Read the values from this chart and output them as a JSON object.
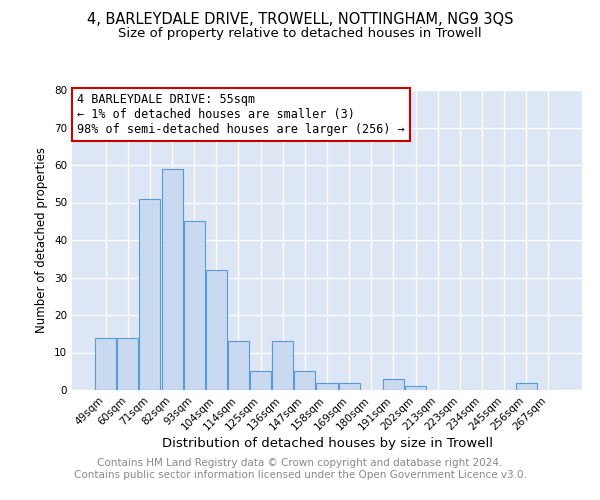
{
  "title": "4, BARLEYDALE DRIVE, TROWELL, NOTTINGHAM, NG9 3QS",
  "subtitle": "Size of property relative to detached houses in Trowell",
  "xlabel": "Distribution of detached houses by size in Trowell",
  "ylabel": "Number of detached properties",
  "bar_labels": [
    "49sqm",
    "60sqm",
    "71sqm",
    "82sqm",
    "93sqm",
    "104sqm",
    "114sqm",
    "125sqm",
    "136sqm",
    "147sqm",
    "158sqm",
    "169sqm",
    "180sqm",
    "191sqm",
    "202sqm",
    "213sqm",
    "223sqm",
    "234sqm",
    "245sqm",
    "256sqm",
    "267sqm"
  ],
  "bar_values": [
    14,
    14,
    51,
    59,
    45,
    32,
    13,
    5,
    13,
    5,
    2,
    2,
    0,
    3,
    1,
    0,
    0,
    0,
    0,
    2,
    0
  ],
  "bar_color": "#c9d9f0",
  "bar_edge_color": "#5b9bd5",
  "background_color": "#ffffff",
  "plot_bg_color": "#dce6f5",
  "grid_color": "#ffffff",
  "ylim": [
    0,
    80
  ],
  "yticks": [
    0,
    10,
    20,
    30,
    40,
    50,
    60,
    70,
    80
  ],
  "annotation_box_text": "4 BARLEYDALE DRIVE: 55sqm\n← 1% of detached houses are smaller (3)\n98% of semi-detached houses are larger (256) →",
  "annotation_box_color": "#ffffff",
  "annotation_box_edge_color": "#cc0000",
  "footer_line1": "Contains HM Land Registry data © Crown copyright and database right 2024.",
  "footer_line2": "Contains public sector information licensed under the Open Government Licence v3.0.",
  "title_fontsize": 10.5,
  "subtitle_fontsize": 9.5,
  "xlabel_fontsize": 9.5,
  "ylabel_fontsize": 8.5,
  "tick_fontsize": 7.5,
  "annotation_fontsize": 8.5,
  "footer_fontsize": 7.5
}
